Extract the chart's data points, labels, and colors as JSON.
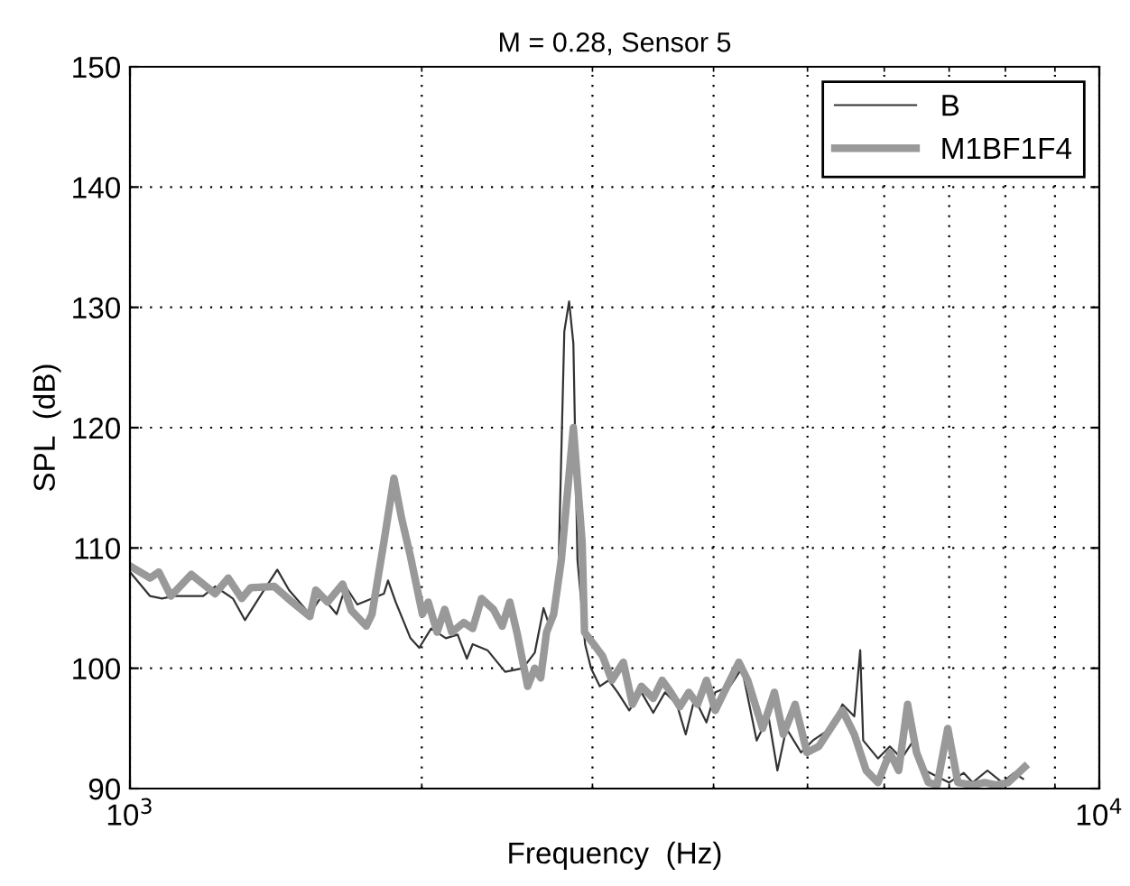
{
  "chart_data": {
    "type": "line",
    "title": "M = 0.28, Sensor 5",
    "xlabel": "Frequency  (Hz)",
    "ylabel": "SPL  (dB)",
    "log": "x",
    "grid": true,
    "legend": "top right",
    "line_style": "solid",
    "marker": "none",
    "xlim": [
      1000,
      10000
    ],
    "xticks": [
      {
        "value": 1000,
        "label": "10$^{3}$"
      },
      {
        "value": 10000,
        "label": "10$^{4}$"
      }
    ],
    "ylim": [
      90,
      150
    ],
    "yticks": [
      90,
      100,
      110,
      120,
      130,
      140,
      150
    ],
    "series": [
      {
        "name": "B",
        "color": "#333333",
        "x": [
          1000,
          1049,
          1079,
          1110,
          1190,
          1224,
          1277,
          1314,
          1370,
          1419,
          1459,
          1533,
          1577,
          1634,
          1669,
          1716,
          1828,
          1846,
          1880,
          1947,
          1988,
          2045,
          2118,
          2178,
          2226,
          2257,
          2338,
          2438,
          2543,
          2616,
          2671,
          2709,
          2767,
          2806,
          2838,
          2867,
          2895,
          2948,
          2990,
          3053,
          3118,
          3185,
          3274,
          3370,
          3466,
          3564,
          3666,
          3744,
          3824,
          3933,
          4016,
          4159,
          4278,
          4431,
          4557,
          4655,
          4755,
          4924,
          5064,
          5282,
          5433,
          5588,
          5667,
          5707,
          5911,
          6080,
          6253,
          6432,
          6616,
          6803,
          6997,
          7247,
          7401,
          7666,
          7943,
          8167,
          8344
        ],
        "values": [
          108,
          106,
          105.8,
          106,
          106,
          106.8,
          105.8,
          104,
          106.3,
          108.2,
          106.5,
          104.5,
          106,
          104.5,
          106.8,
          105.3,
          106.2,
          107.3,
          105.5,
          102.5,
          101.7,
          103.3,
          102.5,
          102.8,
          100.8,
          102,
          101.5,
          99.7,
          100,
          101.3,
          105,
          103.5,
          108,
          128,
          130.5,
          127,
          109,
          102,
          100,
          98.5,
          99,
          98,
          96.5,
          98,
          96.3,
          98,
          97,
          94.5,
          97.5,
          95.5,
          98,
          98.5,
          100,
          94,
          96,
          91.5,
          95,
          93,
          94,
          95,
          97,
          96,
          101.5,
          94,
          92.5,
          93.5,
          92.5,
          94,
          91.5,
          91,
          90.5,
          91.3,
          90.5,
          91.5,
          90.5,
          91.3,
          90.8
        ]
      },
      {
        "name": "M1BF1F4",
        "color": "#999999",
        "x": [
          1000,
          1049,
          1071,
          1102,
          1157,
          1224,
          1263,
          1304,
          1332,
          1409,
          1470,
          1533,
          1555,
          1599,
          1657,
          1692,
          1753,
          1777,
          1828,
          1872,
          1906,
          1947,
          2003,
          2031,
          2074,
          2112,
          2148,
          2210,
          2257,
          2305,
          2371,
          2421,
          2465,
          2507,
          2572,
          2616,
          2653,
          2690,
          2736,
          2786,
          2867,
          2927,
          2944,
          3009,
          3073,
          3141,
          3228,
          3299,
          3370,
          3466,
          3540,
          3614,
          3692,
          3771,
          3851,
          3933,
          4016,
          4130,
          4248,
          4338,
          4494,
          4622,
          4721,
          4855,
          4993,
          5136,
          5282,
          5433,
          5588,
          5748,
          5911,
          6080,
          6209,
          6342,
          6478,
          6662,
          6803,
          6977,
          7146,
          7401,
          7612,
          7829,
          8054,
          8377
        ],
        "values": [
          108.5,
          107.5,
          108,
          106,
          107.8,
          106.2,
          107.5,
          105.8,
          106.7,
          106.8,
          105.5,
          104.3,
          106.5,
          105.5,
          107,
          104.8,
          103.5,
          104.5,
          110.5,
          115.8,
          112.5,
          109.3,
          104.5,
          105.5,
          103,
          104.9,
          103,
          103.8,
          103.3,
          105.8,
          104.9,
          103.5,
          105.5,
          103,
          98.5,
          100,
          99.2,
          103,
          104.5,
          109,
          120,
          110.5,
          103,
          102,
          101,
          99,
          100.5,
          97,
          98.5,
          97.5,
          99,
          98,
          96.8,
          98,
          97,
          99,
          96.5,
          98.5,
          100.5,
          99,
          95,
          98,
          94.5,
          97,
          93,
          93.5,
          95,
          96.5,
          94.5,
          91.5,
          90.5,
          93,
          91.5,
          97,
          93,
          90.5,
          90.3,
          95,
          90.5,
          90.3,
          90.5,
          90.3,
          90.5,
          91.8
        ]
      }
    ]
  }
}
